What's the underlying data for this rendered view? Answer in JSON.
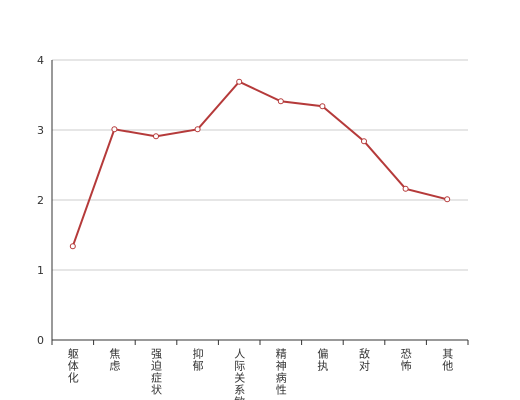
{
  "chart_data": {
    "type": "line",
    "categories": [
      "躯体化",
      "焦虑",
      "强迫症状",
      "抑郁",
      "人际关系敏感",
      "精神病性",
      "偏执",
      "敌对",
      "恐怖",
      "其他"
    ],
    "values": [
      1.34,
      3.01,
      2.91,
      3.01,
      3.69,
      3.41,
      3.34,
      2.84,
      2.16,
      2.01
    ],
    "color": "#b53a3a",
    "ylim": [
      0,
      4
    ],
    "yticks": [
      0,
      1,
      2,
      3,
      4
    ],
    "grid": true
  }
}
